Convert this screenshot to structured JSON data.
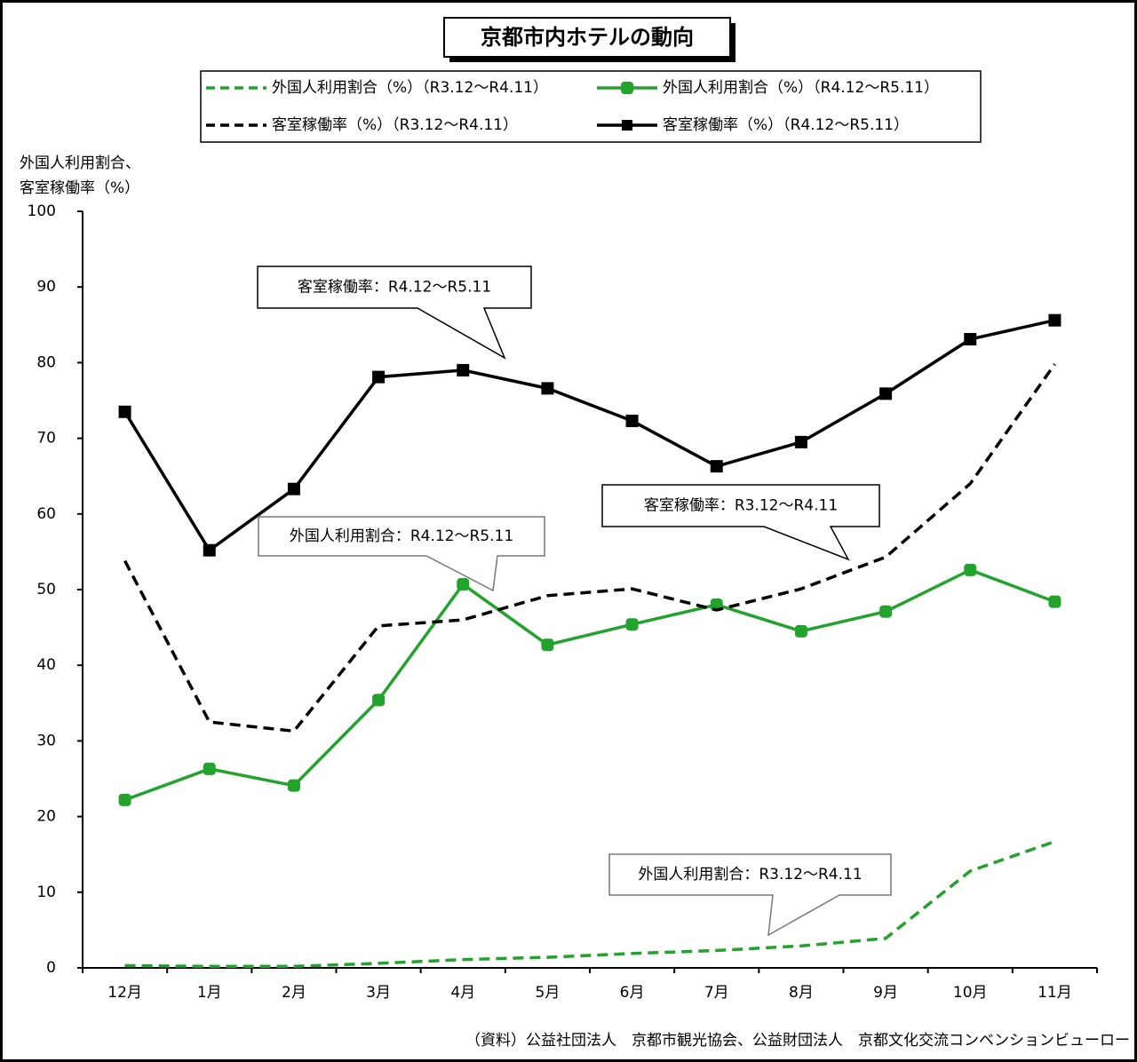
{
  "chart_data": {
    "type": "line",
    "title": "京都市内ホテルの動向",
    "y_label": [
      "外国人利用割合、",
      "客室稼働率（%）"
    ],
    "categories": [
      "12月",
      "1月",
      "2月",
      "3月",
      "4月",
      "5月",
      "6月",
      "7月",
      "8月",
      "9月",
      "10月",
      "11月"
    ],
    "ylim": [
      0,
      100
    ],
    "yticks": [
      0,
      10,
      20,
      30,
      40,
      50,
      60,
      70,
      80,
      90,
      100
    ],
    "series": [
      {
        "name": "外国人利用割合（%）（R3.12～R4.11）",
        "color": "#22a32c",
        "dash": true,
        "marker": "none",
        "values": [
          0.3,
          0.2,
          0.2,
          0.6,
          1.1,
          1.4,
          1.9,
          2.3,
          2.9,
          3.9,
          12.8,
          16.7
        ]
      },
      {
        "name": "外国人利用割合（%）（R4.12～R5.11）",
        "color": "#22a32c",
        "dash": false,
        "marker": "circle",
        "values": [
          22.2,
          26.3,
          24.1,
          35.4,
          50.7,
          42.7,
          45.4,
          48.0,
          44.5,
          47.1,
          52.6,
          48.4
        ]
      },
      {
        "name": "客室稼働率（%）（R3.12～R4.11）",
        "color": "#000000",
        "dash": true,
        "marker": "none",
        "values": [
          53.8,
          32.5,
          31.3,
          45.2,
          46.0,
          49.2,
          50.1,
          47.3,
          50.1,
          54.3,
          64.0,
          79.8
        ]
      },
      {
        "name": "客室稼働率（%）（R4.12～R5.11）",
        "color": "#000000",
        "dash": false,
        "marker": "square",
        "values": [
          73.5,
          55.2,
          63.3,
          78.1,
          79.0,
          76.6,
          72.3,
          66.3,
          69.5,
          75.9,
          83.1,
          85.6
        ]
      }
    ],
    "annotations": [
      "客室稼働率：R4.12～R5.11",
      "客室稼働率：R3.12～R4.11",
      "外国人利用割合：R4.12～R5.11",
      "外国人利用割合：R3.12～R4.11"
    ],
    "source": "（資料）公益社団法人　京都市観光協会、公益財団法人　京都文化交流コンベンションビューロー"
  }
}
